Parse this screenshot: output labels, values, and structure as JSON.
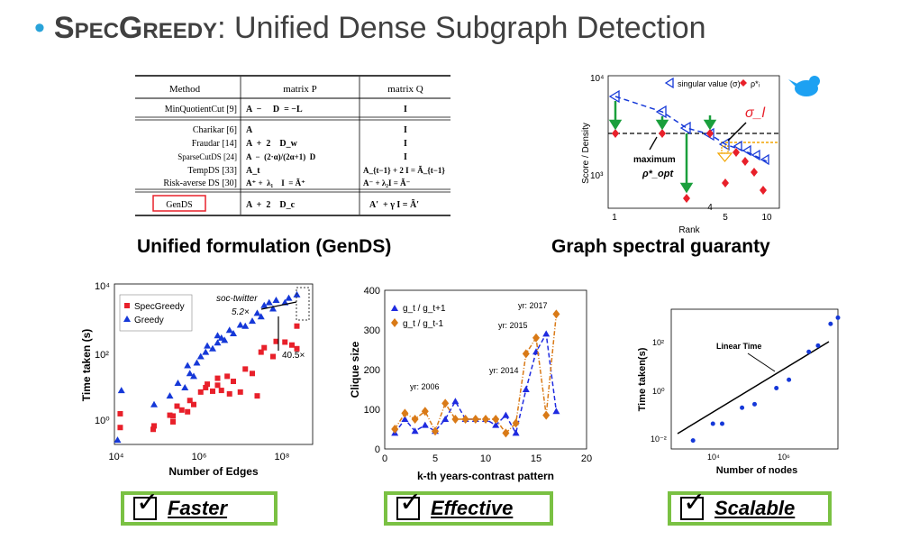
{
  "title": {
    "bullet": "•",
    "brand": "SpecGreedy",
    "rest": ": Unified Dense Subgraph Detection"
  },
  "table": {
    "headers": {
      "method": "Method",
      "p": "matrix P",
      "q": "matrix Q"
    },
    "rows": [
      {
        "method": "MinQuotientCut [9]",
        "p": "A  −     D  = −L",
        "q": "I"
      },
      {
        "method": "Charikar [6]",
        "p": "A",
        "q": "I"
      },
      {
        "method": "Fraudar [14]",
        "p": "A  +  2    D_w",
        "q": "I"
      },
      {
        "method": "SparseCutDS [24]",
        "p": "A  −  (2·α)/(2α+1)  D",
        "q": "I"
      },
      {
        "method": "TempDS [33]",
        "p": "A_t",
        "q": "A_{t−1} + 2 I = Ã_{t−1}"
      },
      {
        "method": "Risk-averse DS [30]",
        "p": "A⁺ +  λ₁    I  = Ã⁺",
        "q": "A⁻  + λ₂I = Ã⁻"
      },
      {
        "method": "GenDS",
        "p": "A  +  2    D_c",
        "q": "A′  + γ I = Ã′"
      }
    ]
  },
  "captions": {
    "left": "Unified formulation (GenDS)",
    "right": "Graph spectral guaranty"
  },
  "spectral": {
    "ylabel": "Score / Density",
    "xlabel": "Rank",
    "ytop": "10⁴",
    "ymid": "10³",
    "xticks": [
      "1",
      "5",
      "10"
    ],
    "xtick_mid": "4",
    "legend_sv": "singular value (σ)",
    "legend_rho": "ρ*ᵢ",
    "sigma_label": "σ_l",
    "max_label1": "maximum",
    "max_label2": "ρ*_opt"
  },
  "chart_data": [
    {
      "type": "scatter",
      "xlabel": "Number of Edges",
      "ylabel": "Time taken (s)",
      "xscale": "log",
      "yscale": "log",
      "xlim": [
        10000,
        1000000000
      ],
      "ylim": [
        0.3,
        10000
      ],
      "xticks": [
        "10⁴",
        "10⁶",
        "10⁸"
      ],
      "yticks": [
        "10⁰",
        "10²",
        "10⁴"
      ],
      "series": [
        {
          "name": "SpecGreedy",
          "color": "#e8202a",
          "points": [
            [
              14000,
              0.9
            ],
            [
              14000,
              2.2
            ],
            [
              95000,
              0.8
            ],
            [
              100000,
              1.0
            ],
            [
              250000,
              2.0
            ],
            [
              300000,
              1.3
            ],
            [
              300000,
              1.9
            ],
            [
              380000,
              3.6
            ],
            [
              500000,
              2.8
            ],
            [
              700000,
              2.5
            ],
            [
              800000,
              5.2
            ],
            [
              1000000,
              4.0
            ],
            [
              1500000,
              9
            ],
            [
              2000000,
              12
            ],
            [
              2200000,
              15
            ],
            [
              3000000,
              9.5
            ],
            [
              4000000,
              22
            ],
            [
              4000000,
              14
            ],
            [
              5000000,
              10
            ],
            [
              7000000,
              25
            ],
            [
              8000000,
              8
            ],
            [
              10000000,
              18
            ],
            [
              15000000,
              9
            ],
            [
              20000000,
              40
            ],
            [
              30000000,
              30
            ],
            [
              40000000,
              7
            ],
            [
              50000000,
              120
            ],
            [
              60000000,
              160
            ],
            [
              100000000,
              90
            ],
            [
              120000000,
              240
            ],
            [
              200000000,
              230
            ],
            [
              300000000,
              190
            ],
            [
              400000000,
              150
            ],
            [
              400000000,
              650
            ]
          ]
        },
        {
          "name": "Greedy",
          "color": "#1538d8",
          "points": [
            [
              12000,
              0.4
            ],
            [
              15000,
              10
            ],
            [
              100000,
              4
            ],
            [
              250000,
              7
            ],
            [
              400000,
              16
            ],
            [
              600000,
              12
            ],
            [
              700000,
              50
            ],
            [
              800000,
              30
            ],
            [
              1000000,
              25
            ],
            [
              1200000,
              60
            ],
            [
              1500000,
              90
            ],
            [
              2000000,
              120
            ],
            [
              2200000,
              180
            ],
            [
              3000000,
              150
            ],
            [
              4000000,
              220
            ],
            [
              4000000,
              350
            ],
            [
              5000000,
              300
            ],
            [
              6000000,
              260
            ],
            [
              8000000,
              500
            ],
            [
              10000000,
              400
            ],
            [
              15000000,
              700
            ],
            [
              20000000,
              650
            ],
            [
              30000000,
              900
            ],
            [
              40000000,
              1500
            ],
            [
              50000000,
              1200
            ],
            [
              60000000,
              2500
            ],
            [
              80000000,
              3000
            ],
            [
              100000000,
              2000
            ],
            [
              120000000,
              3500
            ],
            [
              200000000,
              3000
            ],
            [
              250000000,
              4000
            ],
            [
              400000000,
              5000
            ]
          ]
        }
      ],
      "annotations": {
        "soc": "soc-twitter",
        "speed1": "5.2×",
        "speed2": "40.5×"
      }
    },
    {
      "type": "line",
      "xlabel": "k-th years-contrast pattern",
      "ylabel": "Clique size",
      "xlim": [
        0,
        20
      ],
      "ylim": [
        0,
        400
      ],
      "xticks": [
        0,
        5,
        10,
        15,
        20
      ],
      "yticks": [
        0,
        100,
        200,
        300,
        400
      ],
      "series": [
        {
          "name": "g_t / g_t+1",
          "color": "#1f2be0",
          "values": [
            [
              1,
              40
            ],
            [
              2,
              75
            ],
            [
              3,
              45
            ],
            [
              4,
              60
            ],
            [
              5,
              45
            ],
            [
              6,
              75
            ],
            [
              7,
              120
            ],
            [
              8,
              75
            ],
            [
              9,
              75
            ],
            [
              10,
              75
            ],
            [
              11,
              60
            ],
            [
              12,
              85
            ],
            [
              13,
              40
            ],
            [
              14,
              150
            ],
            [
              15,
              245
            ],
            [
              16,
              290
            ],
            [
              17,
              95
            ]
          ]
        },
        {
          "name": "g_t / g_t-1",
          "color": "#d97a17",
          "values": [
            [
              1,
              50
            ],
            [
              2,
              90
            ],
            [
              3,
              75
            ],
            [
              4,
              95
            ],
            [
              5,
              45
            ],
            [
              6,
              115
            ],
            [
              7,
              75
            ],
            [
              8,
              75
            ],
            [
              9,
              75
            ],
            [
              10,
              75
            ],
            [
              11,
              75
            ],
            [
              12,
              40
            ],
            [
              13,
              65
            ],
            [
              14,
              240
            ],
            [
              15,
              280
            ],
            [
              16,
              85
            ],
            [
              17,
              340
            ]
          ]
        }
      ],
      "annotations": {
        "yr2006": "yr: 2006",
        "yr2014": "yr: 2014",
        "yr2015": "yr: 2015",
        "yr2017": "yr: 2017"
      }
    },
    {
      "type": "scatter",
      "xlabel": "Number of nodes",
      "ylabel": "Time taken(s)",
      "xscale": "log",
      "yscale": "log",
      "xlim": [
        300,
        3000000
      ],
      "ylim": [
        0.01,
        1000
      ],
      "xticks": [
        "10⁴",
        "10⁶"
      ],
      "yticks": [
        "10⁻²",
        "10⁰",
        "10²"
      ],
      "series": [
        {
          "name": "nodes",
          "color": "#1538d8",
          "points": [
            [
              1000,
              0.02
            ],
            [
              3000,
              0.08
            ],
            [
              5000,
              0.08
            ],
            [
              15000,
              0.3
            ],
            [
              30000,
              0.4
            ],
            [
              100000,
              1.5
            ],
            [
              200000,
              3
            ],
            [
              600000,
              30
            ],
            [
              1000000,
              50
            ],
            [
              2000000,
              300
            ],
            [
              3000000,
              500
            ]
          ]
        }
      ],
      "fit_label": "Linear Time"
    }
  ],
  "badges": {
    "faster": "Faster",
    "effective": "Effective",
    "scalable": "Scalable",
    "check": "✓"
  }
}
